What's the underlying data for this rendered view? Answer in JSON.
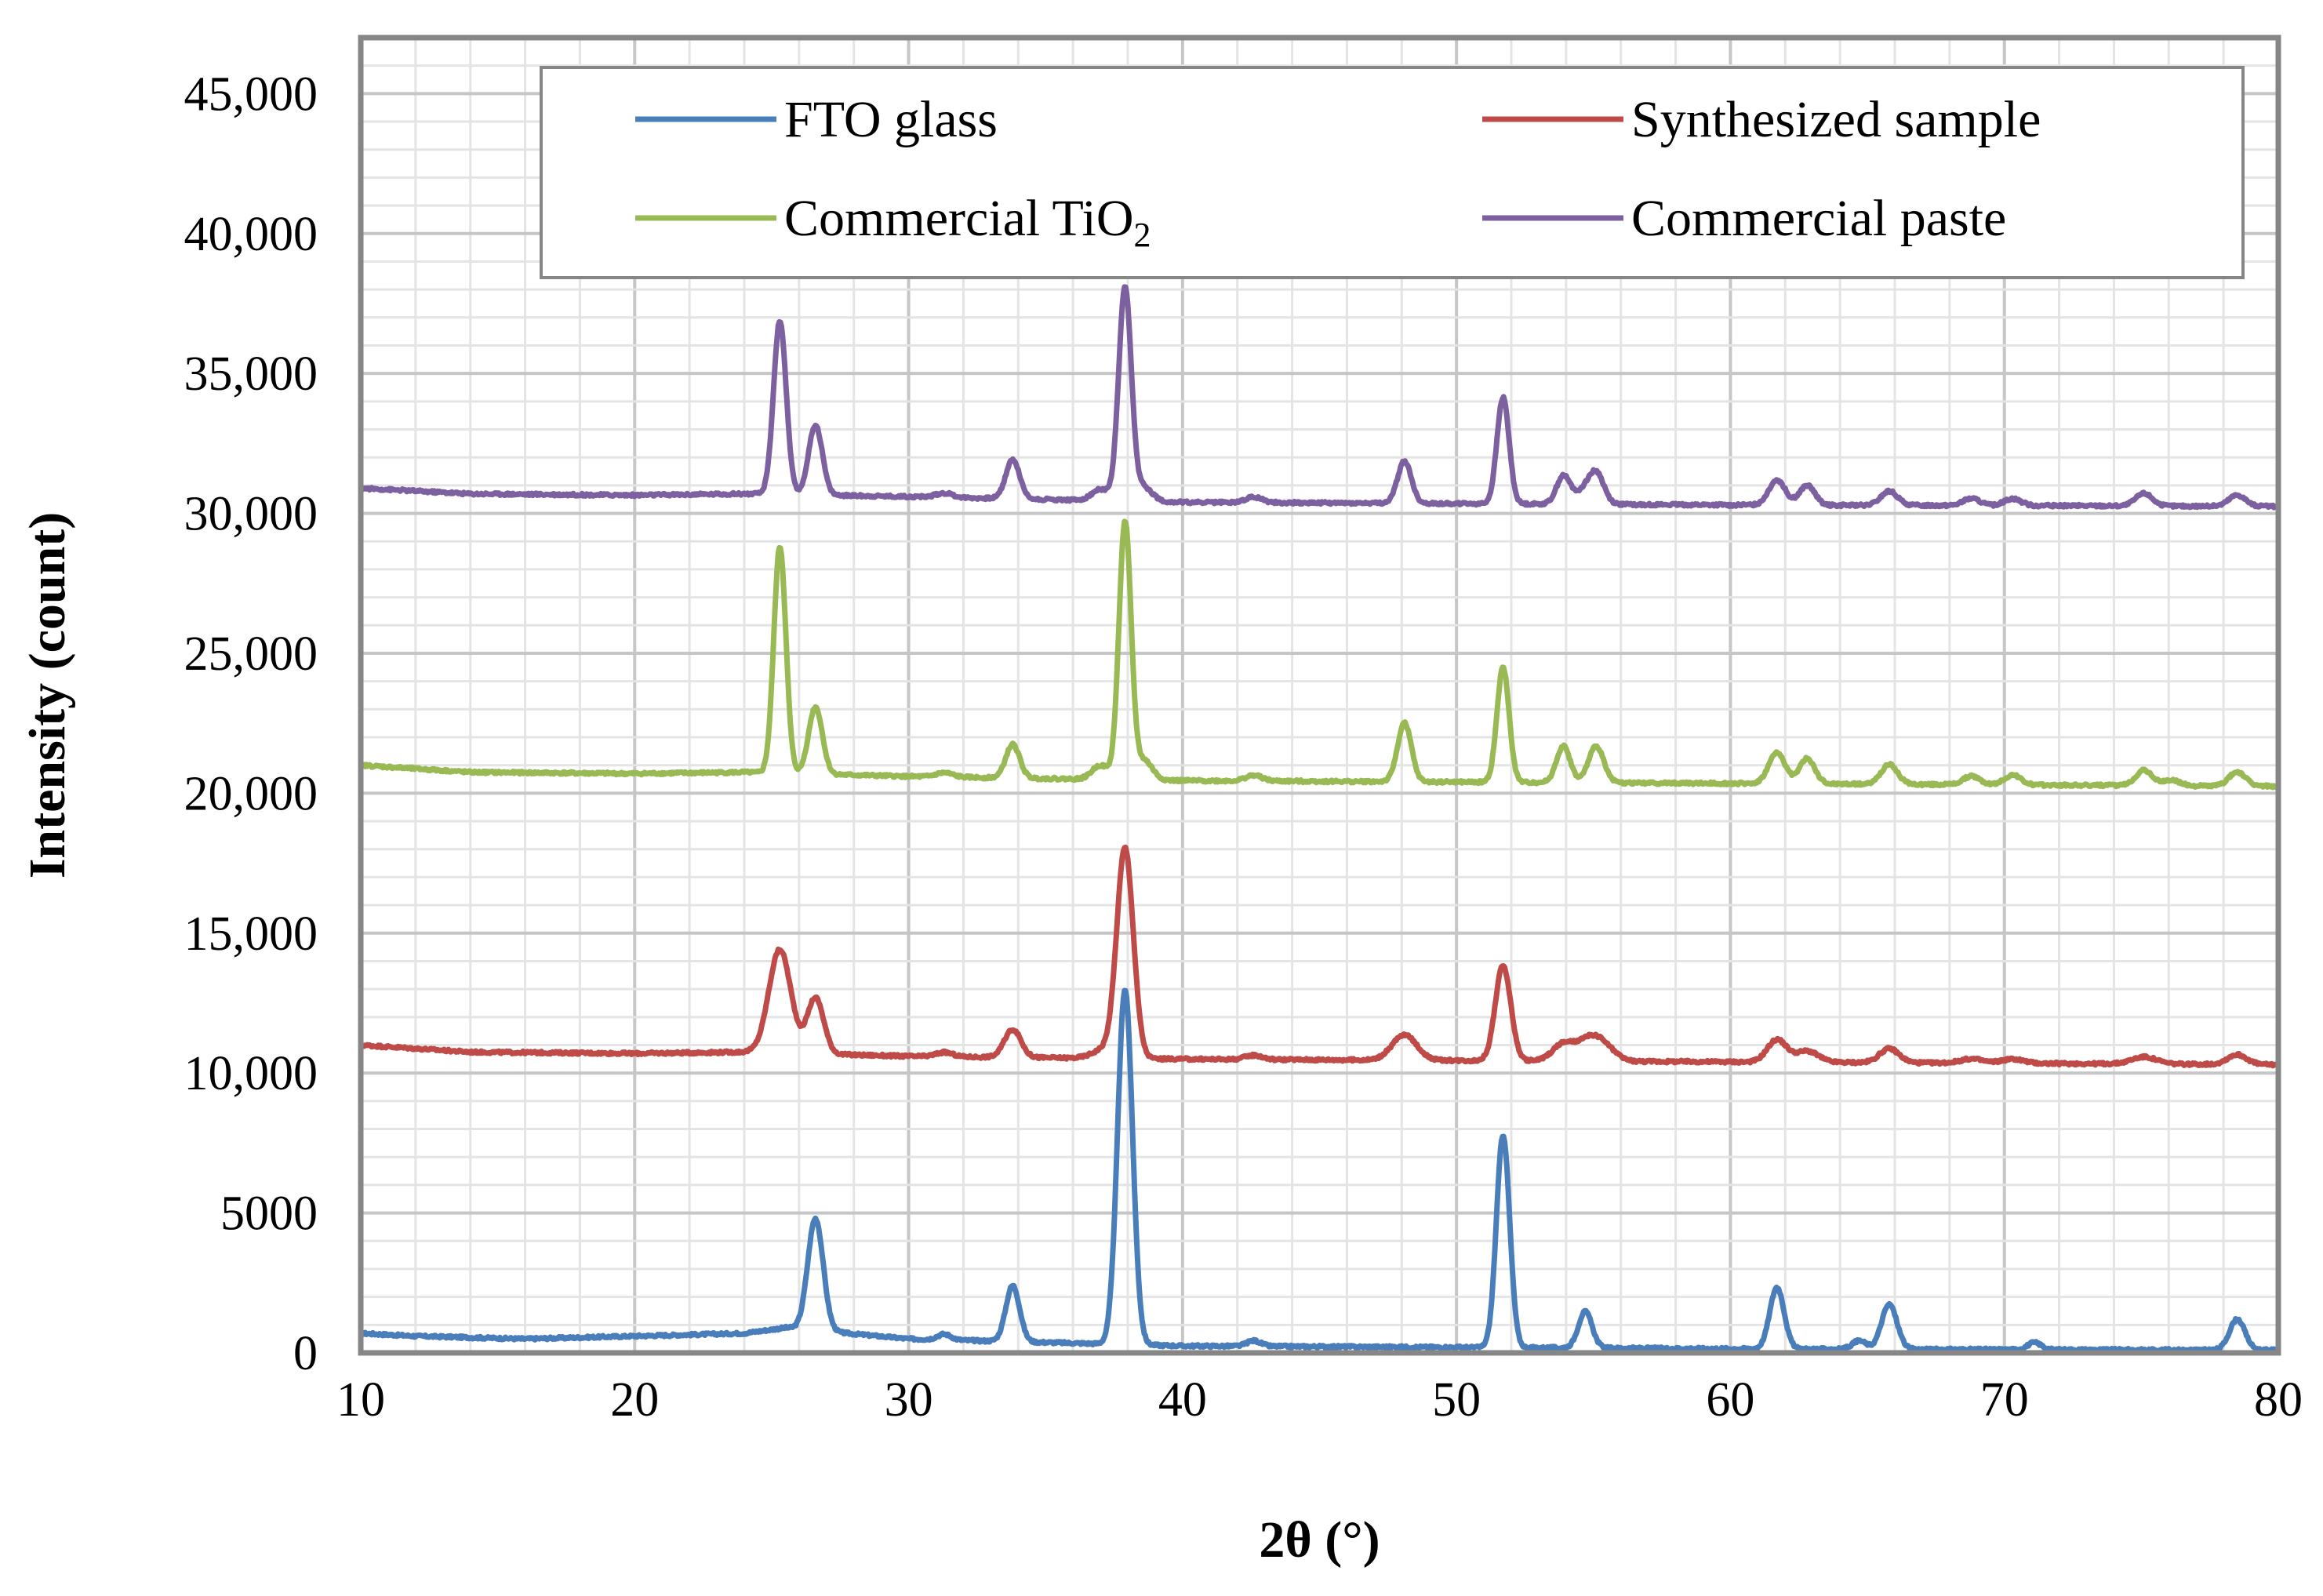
{
  "chart_data": {
    "type": "line",
    "title": "",
    "xlabel": "2θ (°)",
    "ylabel": "Intensity (count)",
    "xlim": [
      10,
      80
    ],
    "ylim": [
      0,
      47000
    ],
    "x_ticks": [
      10,
      20,
      30,
      40,
      50,
      60,
      70,
      80
    ],
    "x_tick_labels": [
      "10",
      "20",
      "30",
      "40",
      "50",
      "60",
      "70",
      "80"
    ],
    "y_ticks": [
      0,
      5000,
      10000,
      15000,
      20000,
      25000,
      30000,
      35000,
      40000,
      45000
    ],
    "y_tick_labels": [
      "0",
      "5000",
      "10,000",
      "15,000",
      "20,000",
      "25,000",
      "30,000",
      "35,000",
      "40,000",
      "45,000"
    ],
    "grid": true,
    "legend_position": "top",
    "series": [
      {
        "name": "FTO glass",
        "legend_label": "FTO glass",
        "legend_sub": "",
        "color": "#4a7ebb",
        "baseline": [
          [
            10,
            700
          ],
          [
            12,
            600
          ],
          [
            16,
            500
          ],
          [
            20,
            600
          ],
          [
            24,
            700
          ],
          [
            25.5,
            900
          ],
          [
            30,
            500
          ],
          [
            40,
            250
          ],
          [
            50,
            200
          ],
          [
            60,
            150
          ],
          [
            70,
            120
          ],
          [
            80,
            100
          ]
        ],
        "peaks": [
          [
            26.6,
            4000,
            0.28
          ],
          [
            31.3,
            200,
            0.25
          ],
          [
            33.8,
            2000,
            0.25
          ],
          [
            37.9,
            12700,
            0.27
          ],
          [
            42.6,
            200,
            0.25
          ],
          [
            51.7,
            7600,
            0.24
          ],
          [
            54.7,
            1300,
            0.25
          ],
          [
            61.7,
            2200,
            0.26
          ],
          [
            64.7,
            300,
            0.25
          ],
          [
            65.8,
            1600,
            0.28
          ],
          [
            71.1,
            250,
            0.25
          ],
          [
            78.5,
            1100,
            0.28
          ]
        ]
      },
      {
        "name": "Synthesized sample",
        "legend_label": "Synthesized sample",
        "legend_sub": "",
        "color": "#be4b48",
        "baseline": [
          [
            10,
            11000
          ],
          [
            14,
            10750
          ],
          [
            20,
            10700
          ],
          [
            24,
            10750
          ],
          [
            30,
            10600
          ],
          [
            40,
            10500
          ],
          [
            50,
            10450
          ],
          [
            60,
            10400
          ],
          [
            70,
            10350
          ],
          [
            80,
            10300
          ]
        ],
        "peaks": [
          [
            25.3,
            3700,
            0.4
          ],
          [
            26.6,
            2000,
            0.3
          ],
          [
            31.3,
            150,
            0.3
          ],
          [
            33.8,
            1000,
            0.3
          ],
          [
            37.1,
            300,
            0.4
          ],
          [
            37.9,
            7500,
            0.3
          ],
          [
            42.6,
            150,
            0.3
          ],
          [
            48.1,
            900,
            0.45
          ],
          [
            51.7,
            3400,
            0.28
          ],
          [
            53.9,
            600,
            0.4
          ],
          [
            54.9,
            800,
            0.45
          ],
          [
            55.5,
            300,
            0.4
          ],
          [
            61.7,
            800,
            0.35
          ],
          [
            62.8,
            400,
            0.4
          ],
          [
            65.8,
            500,
            0.35
          ],
          [
            68.8,
            150,
            0.4
          ],
          [
            70.3,
            150,
            0.4
          ],
          [
            75.1,
            250,
            0.45
          ],
          [
            78.5,
            350,
            0.35
          ]
        ]
      },
      {
        "name": "Commercial TiO2",
        "legend_label": "Commercial TiO",
        "legend_sub": "2",
        "color": "#98b954",
        "baseline": [
          [
            10,
            21000
          ],
          [
            14,
            20750
          ],
          [
            20,
            20700
          ],
          [
            24,
            20750
          ],
          [
            30,
            20600
          ],
          [
            40,
            20450
          ],
          [
            50,
            20400
          ],
          [
            60,
            20350
          ],
          [
            70,
            20300
          ],
          [
            80,
            20250
          ]
        ],
        "peaks": [
          [
            25.3,
            8100,
            0.22
          ],
          [
            26.6,
            2400,
            0.25
          ],
          [
            31.3,
            150,
            0.3
          ],
          [
            33.8,
            1200,
            0.25
          ],
          [
            37.0,
            500,
            0.3
          ],
          [
            37.9,
            9200,
            0.22
          ],
          [
            38.6,
            700,
            0.3
          ],
          [
            42.6,
            200,
            0.3
          ],
          [
            48.1,
            2100,
            0.25
          ],
          [
            51.7,
            4100,
            0.22
          ],
          [
            53.9,
            1300,
            0.25
          ],
          [
            55.1,
            1300,
            0.28
          ],
          [
            61.7,
            1100,
            0.3
          ],
          [
            62.8,
            900,
            0.28
          ],
          [
            65.8,
            700,
            0.3
          ],
          [
            68.8,
            300,
            0.3
          ],
          [
            70.3,
            350,
            0.3
          ],
          [
            75.1,
            550,
            0.3
          ],
          [
            76.1,
            200,
            0.3
          ],
          [
            78.5,
            500,
            0.3
          ]
        ]
      },
      {
        "name": "Commercial paste",
        "legend_label": "Commercial paste",
        "legend_sub": "",
        "color": "#7d60a0",
        "baseline": [
          [
            10,
            30900
          ],
          [
            14,
            30700
          ],
          [
            20,
            30650
          ],
          [
            24,
            30700
          ],
          [
            30,
            30600
          ],
          [
            40,
            30400
          ],
          [
            50,
            30350
          ],
          [
            60,
            30300
          ],
          [
            70,
            30280
          ],
          [
            80,
            30250
          ]
        ],
        "peaks": [
          [
            25.3,
            6200,
            0.23
          ],
          [
            26.6,
            2500,
            0.25
          ],
          [
            31.3,
            150,
            0.3
          ],
          [
            33.8,
            1400,
            0.25
          ],
          [
            37.0,
            400,
            0.3
          ],
          [
            37.9,
            7600,
            0.23
          ],
          [
            38.6,
            500,
            0.3
          ],
          [
            42.6,
            200,
            0.3
          ],
          [
            48.1,
            1500,
            0.25
          ],
          [
            51.7,
            3800,
            0.22
          ],
          [
            53.9,
            1000,
            0.25
          ],
          [
            55.1,
            1100,
            0.28
          ],
          [
            54.6,
            400,
            0.3
          ],
          [
            61.7,
            900,
            0.3
          ],
          [
            62.8,
            700,
            0.28
          ],
          [
            65.8,
            500,
            0.3
          ],
          [
            68.8,
            250,
            0.3
          ],
          [
            70.3,
            250,
            0.3
          ],
          [
            75.1,
            450,
            0.3
          ],
          [
            78.5,
            400,
            0.3
          ]
        ]
      }
    ]
  }
}
